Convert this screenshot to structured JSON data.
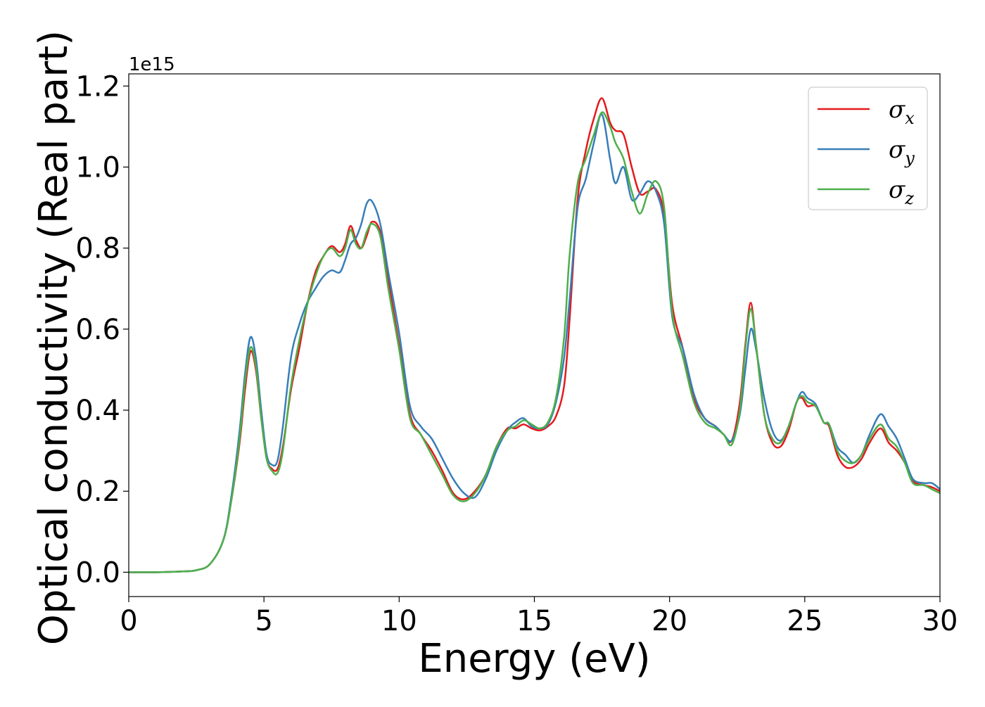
{
  "chart_data": {
    "type": "line",
    "title": "",
    "xlabel": "Energy (eV)",
    "ylabel": "Optical conductivity (Real part)",
    "y_offset_label": "1e15",
    "xlim": [
      0,
      30
    ],
    "ylim": [
      -0.06,
      1.23
    ],
    "xticks": [
      0,
      5,
      10,
      15,
      20,
      25,
      30
    ],
    "xtick_labels": [
      "0",
      "5",
      "10",
      "15",
      "20",
      "25",
      "30"
    ],
    "yticks": [
      0.0,
      0.2,
      0.4,
      0.6,
      0.8,
      1.0,
      1.2
    ],
    "ytick_labels": [
      "0.0",
      "0.2",
      "0.4",
      "0.6",
      "0.8",
      "1.0",
      "1.2"
    ],
    "grid": false,
    "legend_position": "top-right",
    "series": [
      {
        "name": "σx",
        "base": "σ",
        "sub": "x",
        "color": "#e41a1c",
        "x": [
          0,
          1,
          2,
          2.5,
          3,
          3.5,
          3.8,
          4.1,
          4.3,
          4.5,
          4.7,
          4.9,
          5.1,
          5.3,
          5.5,
          5.7,
          6.0,
          6.3,
          6.6,
          6.9,
          7.2,
          7.5,
          7.8,
          8.0,
          8.2,
          8.4,
          8.6,
          8.8,
          9.0,
          9.3,
          9.6,
          10.0,
          10.4,
          10.8,
          11.2,
          11.6,
          12.0,
          12.4,
          12.8,
          13.2,
          13.6,
          14.0,
          14.3,
          14.6,
          14.9,
          15.2,
          15.5,
          15.8,
          16.1,
          16.3,
          16.6,
          16.9,
          17.2,
          17.5,
          17.8,
          18.0,
          18.3,
          18.6,
          18.9,
          19.2,
          19.5,
          19.8,
          20.1,
          20.5,
          20.9,
          21.3,
          21.7,
          22.0,
          22.3,
          22.6,
          22.8,
          23.0,
          23.2,
          23.5,
          23.8,
          24.1,
          24.4,
          24.7,
          24.9,
          25.1,
          25.4,
          25.7,
          25.9,
          26.2,
          26.5,
          26.8,
          27.1,
          27.4,
          27.8,
          28.1,
          28.4,
          28.7,
          29.0,
          29.4,
          29.7,
          30.0
        ],
        "y": [
          0.0,
          0.0,
          0.002,
          0.005,
          0.02,
          0.08,
          0.18,
          0.32,
          0.45,
          0.545,
          0.5,
          0.38,
          0.28,
          0.255,
          0.255,
          0.31,
          0.45,
          0.55,
          0.66,
          0.74,
          0.78,
          0.805,
          0.79,
          0.81,
          0.855,
          0.82,
          0.8,
          0.83,
          0.865,
          0.84,
          0.72,
          0.56,
          0.39,
          0.34,
          0.3,
          0.25,
          0.195,
          0.18,
          0.2,
          0.24,
          0.31,
          0.355,
          0.355,
          0.365,
          0.355,
          0.35,
          0.36,
          0.385,
          0.46,
          0.62,
          0.92,
          1.04,
          1.12,
          1.17,
          1.11,
          1.09,
          1.08,
          1.0,
          0.935,
          0.94,
          0.945,
          0.88,
          0.66,
          0.55,
          0.43,
          0.38,
          0.36,
          0.34,
          0.325,
          0.42,
          0.56,
          0.665,
          0.56,
          0.39,
          0.32,
          0.31,
          0.35,
          0.42,
          0.43,
          0.41,
          0.41,
          0.37,
          0.36,
          0.29,
          0.26,
          0.26,
          0.28,
          0.32,
          0.355,
          0.32,
          0.3,
          0.27,
          0.225,
          0.215,
          0.21,
          0.2
        ]
      },
      {
        "name": "σy",
        "base": "σ",
        "sub": "y",
        "color": "#377eb8",
        "x": [
          0,
          1,
          2,
          2.5,
          3,
          3.5,
          3.8,
          4.1,
          4.3,
          4.5,
          4.7,
          4.9,
          5.1,
          5.3,
          5.5,
          5.7,
          6.0,
          6.3,
          6.6,
          6.9,
          7.2,
          7.5,
          7.8,
          8.0,
          8.2,
          8.4,
          8.6,
          8.8,
          9.0,
          9.3,
          9.6,
          10.0,
          10.4,
          10.8,
          11.2,
          11.6,
          12.0,
          12.4,
          12.8,
          13.2,
          13.6,
          14.0,
          14.3,
          14.6,
          14.9,
          15.2,
          15.5,
          15.8,
          16.1,
          16.3,
          16.6,
          16.9,
          17.2,
          17.5,
          17.8,
          18.0,
          18.3,
          18.6,
          18.9,
          19.2,
          19.5,
          19.8,
          20.1,
          20.5,
          20.9,
          21.3,
          21.7,
          22.0,
          22.3,
          22.6,
          22.8,
          23.0,
          23.2,
          23.5,
          23.8,
          24.1,
          24.4,
          24.7,
          24.9,
          25.1,
          25.4,
          25.7,
          25.9,
          26.2,
          26.5,
          26.8,
          27.1,
          27.4,
          27.8,
          28.1,
          28.4,
          28.7,
          29.0,
          29.4,
          29.7,
          30.0
        ],
        "y": [
          0.0,
          0.0,
          0.002,
          0.005,
          0.02,
          0.08,
          0.19,
          0.35,
          0.49,
          0.58,
          0.53,
          0.4,
          0.29,
          0.265,
          0.275,
          0.36,
          0.53,
          0.61,
          0.665,
          0.7,
          0.73,
          0.745,
          0.74,
          0.77,
          0.81,
          0.825,
          0.86,
          0.91,
          0.915,
          0.86,
          0.74,
          0.59,
          0.41,
          0.36,
          0.33,
          0.28,
          0.23,
          0.195,
          0.185,
          0.23,
          0.3,
          0.35,
          0.37,
          0.38,
          0.36,
          0.355,
          0.365,
          0.42,
          0.53,
          0.67,
          0.9,
          0.97,
          1.06,
          1.13,
          1.02,
          0.96,
          1.0,
          0.92,
          0.935,
          0.965,
          0.94,
          0.86,
          0.63,
          0.55,
          0.44,
          0.38,
          0.36,
          0.34,
          0.325,
          0.39,
          0.5,
          0.6,
          0.55,
          0.43,
          0.35,
          0.325,
          0.36,
          0.42,
          0.445,
          0.43,
          0.415,
          0.37,
          0.365,
          0.31,
          0.29,
          0.27,
          0.29,
          0.34,
          0.39,
          0.36,
          0.33,
          0.28,
          0.23,
          0.22,
          0.22,
          0.205
        ]
      },
      {
        "name": "σz",
        "base": "σ",
        "sub": "z",
        "color": "#4daf4a",
        "x": [
          0,
          1,
          2,
          2.5,
          3,
          3.5,
          3.8,
          4.1,
          4.3,
          4.5,
          4.7,
          4.9,
          5.1,
          5.3,
          5.5,
          5.7,
          6.0,
          6.3,
          6.6,
          6.9,
          7.2,
          7.5,
          7.8,
          8.0,
          8.2,
          8.4,
          8.6,
          8.8,
          9.0,
          9.3,
          9.6,
          10.0,
          10.4,
          10.8,
          11.2,
          11.6,
          12.0,
          12.4,
          12.8,
          13.2,
          13.6,
          14.0,
          14.3,
          14.6,
          14.9,
          15.2,
          15.5,
          15.8,
          16.1,
          16.3,
          16.6,
          16.9,
          17.2,
          17.5,
          17.8,
          18.0,
          18.3,
          18.6,
          18.9,
          19.2,
          19.5,
          19.8,
          20.1,
          20.5,
          20.9,
          21.3,
          21.7,
          22.0,
          22.3,
          22.6,
          22.8,
          23.0,
          23.2,
          23.5,
          23.8,
          24.1,
          24.4,
          24.7,
          24.9,
          25.1,
          25.4,
          25.7,
          25.9,
          26.2,
          26.5,
          26.8,
          27.1,
          27.4,
          27.8,
          28.1,
          28.4,
          28.7,
          29.0,
          29.4,
          29.7,
          30.0
        ],
        "y": [
          0.0,
          0.0,
          0.002,
          0.005,
          0.02,
          0.08,
          0.18,
          0.33,
          0.47,
          0.555,
          0.51,
          0.38,
          0.28,
          0.25,
          0.245,
          0.3,
          0.46,
          0.57,
          0.66,
          0.73,
          0.78,
          0.8,
          0.78,
          0.8,
          0.845,
          0.81,
          0.8,
          0.84,
          0.86,
          0.83,
          0.7,
          0.55,
          0.38,
          0.34,
          0.29,
          0.24,
          0.19,
          0.175,
          0.195,
          0.24,
          0.31,
          0.35,
          0.36,
          0.375,
          0.365,
          0.355,
          0.37,
          0.43,
          0.58,
          0.78,
          0.96,
          1.02,
          1.08,
          1.135,
          1.1,
          1.06,
          1.02,
          0.94,
          0.885,
          0.935,
          0.965,
          0.9,
          0.64,
          0.53,
          0.42,
          0.37,
          0.355,
          0.34,
          0.315,
          0.4,
          0.55,
          0.65,
          0.56,
          0.39,
          0.33,
          0.32,
          0.36,
          0.42,
          0.435,
          0.42,
          0.41,
          0.37,
          0.365,
          0.3,
          0.275,
          0.27,
          0.29,
          0.33,
          0.365,
          0.33,
          0.31,
          0.27,
          0.22,
          0.215,
          0.205,
          0.195
        ]
      }
    ]
  }
}
